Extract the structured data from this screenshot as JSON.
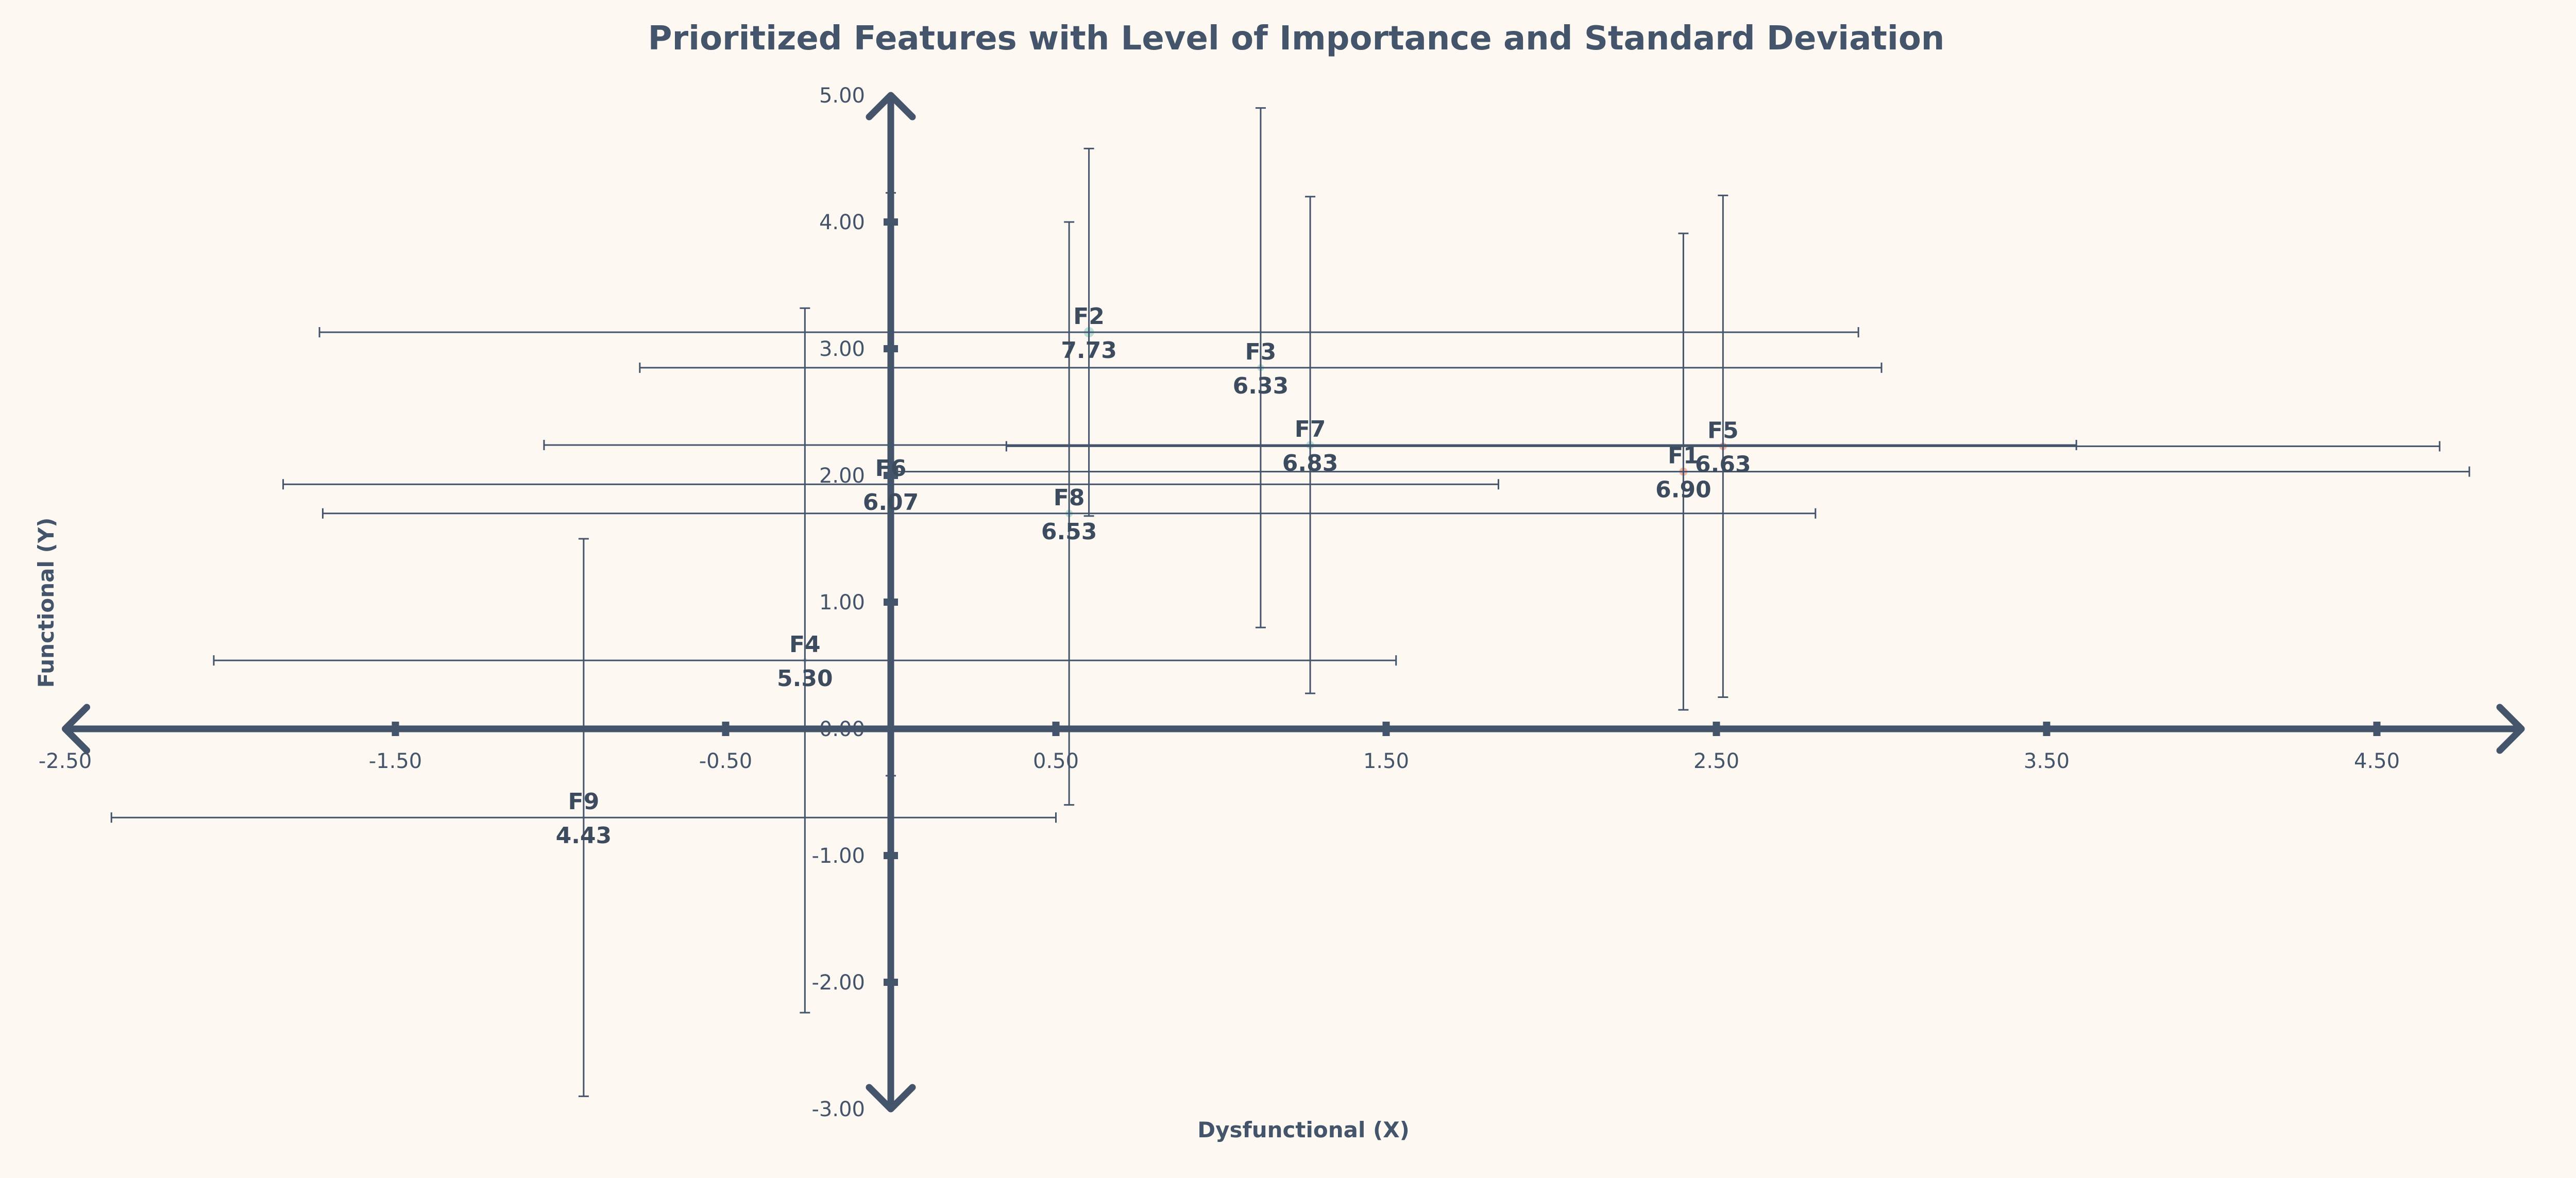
{
  "chart_data": {
    "type": "bubble",
    "title": "Prioritized Features with Level of Importance and Standard Deviation",
    "xlabel": "Dysfunctional (X)",
    "ylabel": "Functional (Y)",
    "xlim": [
      -2.5,
      5.0
    ],
    "ylim": [
      -3.0,
      5.0
    ],
    "x_ticks": [
      -2.5,
      -1.5,
      -0.5,
      0.5,
      1.5,
      2.5,
      3.5,
      4.5
    ],
    "x_tick_labels": [
      "-2.50",
      "-1.50",
      "-0.50",
      "0.50",
      "1.50",
      "2.50",
      "3.50",
      "4.50"
    ],
    "y_ticks": [
      -3,
      -2,
      -1,
      0,
      1,
      2,
      3,
      4,
      5
    ],
    "y_tick_labels": [
      "-3.00",
      "-2.00",
      "-1.00",
      "0.00",
      "1.00",
      "2.00",
      "3.00",
      "4.00",
      "5.00"
    ],
    "points": [
      {
        "name": "F1",
        "importance": 6.9,
        "x": 2.4,
        "y": 2.03,
        "x_err": 2.38,
        "y_err": 1.88,
        "group": "high"
      },
      {
        "name": "F2",
        "importance": 7.73,
        "x": 0.6,
        "y": 3.13,
        "x_err": 2.33,
        "y_err": 1.45,
        "group": "mid"
      },
      {
        "name": "F3",
        "importance": 6.33,
        "x": 1.12,
        "y": 2.85,
        "x_err": 1.88,
        "y_err": 2.05,
        "group": "mid"
      },
      {
        "name": "F4",
        "importance": 5.3,
        "x": -0.26,
        "y": 0.54,
        "x_err": 1.79,
        "y_err": 2.78,
        "group": "low"
      },
      {
        "name": "F5",
        "importance": 6.63,
        "x": 2.52,
        "y": 2.23,
        "x_err": 2.17,
        "y_err": 1.98,
        "group": "high"
      },
      {
        "name": "F6",
        "importance": 6.07,
        "x": 0.0,
        "y": 1.93,
        "x_err": 1.84,
        "y_err": 2.3,
        "group": "mid"
      },
      {
        "name": "F7",
        "importance": 6.83,
        "x": 1.27,
        "y": 2.24,
        "x_err": 2.32,
        "y_err": 1.96,
        "group": "mid"
      },
      {
        "name": "F8",
        "importance": 6.53,
        "x": 0.54,
        "y": 1.7,
        "x_err": 2.26,
        "y_err": 2.3,
        "group": "mid"
      },
      {
        "name": "F9",
        "importance": 4.43,
        "x": -0.93,
        "y": -0.7,
        "x_err": 1.43,
        "y_err": 2.2,
        "group": "low"
      }
    ],
    "colors": {
      "high": "#f2a08c",
      "mid": "#a6d8d2",
      "low": "#dcdad6",
      "axis": "#44546a",
      "error_bar": "#44546a",
      "background": "#fdf8f2"
    }
  }
}
